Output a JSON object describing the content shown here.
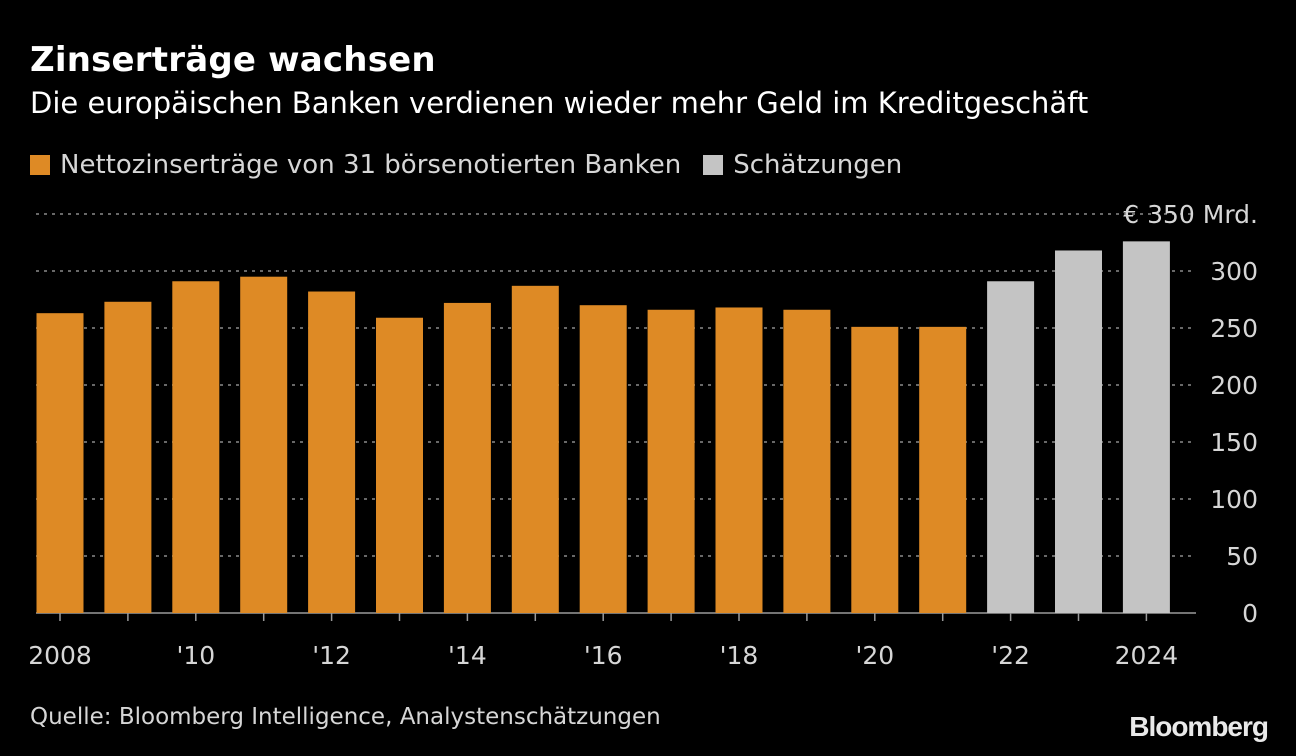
{
  "header": {
    "title": "Zinserträge wachsen",
    "subtitle": "Die europäischen Banken verdienen wieder mehr Geld im Kreditgeschäft"
  },
  "legend": [
    {
      "label": "Nettozinserträge von 31 börsenotierten Banken",
      "color": "#de8a25"
    },
    {
      "label": "Schätzungen",
      "color": "#c4c4c4"
    }
  ],
  "chart_data": {
    "type": "bar",
    "categories": [
      "2008",
      "2009",
      "2010",
      "2011",
      "2012",
      "2013",
      "2014",
      "2015",
      "2016",
      "2017",
      "2018",
      "2019",
      "2020",
      "2021",
      "2022",
      "2023",
      "2024"
    ],
    "series": [
      {
        "name": "Nettozinserträge von 31 börsenotierten Banken",
        "color": "#de8a25",
        "values": [
          263,
          273,
          291,
          295,
          282,
          259,
          272,
          287,
          270,
          266,
          268,
          266,
          251,
          251,
          null,
          null,
          null
        ]
      },
      {
        "name": "Schätzungen",
        "color": "#c4c4c4",
        "values": [
          null,
          null,
          null,
          null,
          null,
          null,
          null,
          null,
          null,
          null,
          null,
          null,
          null,
          null,
          291,
          318,
          326
        ]
      }
    ],
    "x_tick_labels": [
      "2008",
      "",
      "'10",
      "",
      "'12",
      "",
      "'14",
      "",
      "'16",
      "",
      "'18",
      "",
      "'20",
      "",
      "'22",
      "",
      "2024"
    ],
    "y_ticks": [
      "0",
      "50",
      "100",
      "150",
      "200",
      "250",
      "300"
    ],
    "y_top_label": "€ 350 Mrd.",
    "ylim": [
      0,
      350
    ],
    "grid": true,
    "legend_placement": "top-left"
  },
  "footer": {
    "source": "Quelle: Bloomberg Intelligence, Analystenschätzungen",
    "brand": "Bloomberg"
  }
}
